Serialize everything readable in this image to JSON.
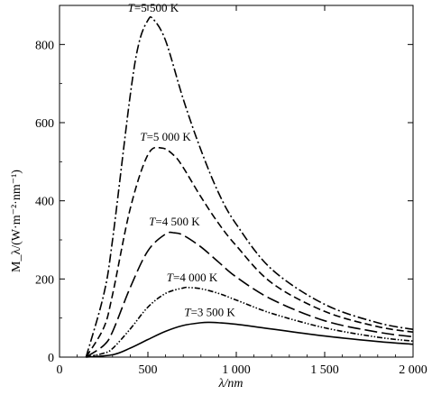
{
  "chart_data": {
    "type": "line",
    "title": "",
    "xlabel": "λ/nm",
    "ylabel": "M_λ/(W·m⁻²·nm⁻¹)",
    "xlim": [
      0,
      2000
    ],
    "ylim": [
      0,
      900
    ],
    "x_ticks": [
      0,
      500,
      1000,
      1500,
      2000
    ],
    "x_tick_labels": [
      "0",
      "500",
      "1 000",
      "1 500",
      "2 000"
    ],
    "y_ticks": [
      0,
      200,
      400,
      600,
      800
    ],
    "y_tick_labels": [
      "0",
      "200",
      "400",
      "600",
      "800"
    ],
    "grid": false,
    "legend": "none",
    "series": [
      {
        "name": "T=3 500 K",
        "style": "solid",
        "x": [
          150,
          300,
          400,
          500,
          600,
          700,
          800,
          850,
          900,
          1000,
          1200,
          1500,
          1800,
          2000
        ],
        "values": [
          0,
          6,
          23,
          45,
          66,
          81,
          88,
          89,
          88,
          84,
          72,
          54,
          40,
          33
        ]
      },
      {
        "name": "T=4 000 K",
        "style": "dash-dot-dot",
        "x": [
          150,
          250,
          300,
          400,
          500,
          600,
          700,
          730,
          800,
          900,
          1000,
          1200,
          1500,
          1800,
          2000
        ],
        "values": [
          0,
          10,
          22,
          72,
          128,
          163,
          177,
          178,
          175,
          163,
          146,
          112,
          75,
          51,
          41
        ]
      },
      {
        "name": "T=4 500 K",
        "style": "long-dash",
        "x": [
          150,
          250,
          300,
          400,
          500,
          600,
          650,
          700,
          800,
          900,
          1000,
          1200,
          1500,
          1800,
          2000
        ],
        "values": [
          0,
          30,
          65,
          178,
          272,
          315,
          318,
          312,
          282,
          243,
          205,
          148,
          93,
          64,
          52
        ]
      },
      {
        "name": "T=5 000 K",
        "style": "dash",
        "x": [
          150,
          250,
          300,
          400,
          500,
          580,
          650,
          700,
          800,
          900,
          1000,
          1200,
          1500,
          1800,
          2000
        ],
        "values": [
          0,
          75,
          160,
          380,
          518,
          535,
          515,
          485,
          410,
          342,
          285,
          190,
          117,
          78,
          64
        ]
      },
      {
        "name": "T=5 500 K",
        "style": "dash-dot",
        "x": [
          150,
          250,
          300,
          400,
          450,
          500,
          530,
          600,
          700,
          800,
          900,
          1000,
          1200,
          1500,
          1800,
          2000
        ],
        "values": [
          0,
          160,
          300,
          670,
          805,
          862,
          865,
          810,
          660,
          530,
          420,
          340,
          225,
          135,
          88,
          71
        ]
      }
    ]
  }
}
